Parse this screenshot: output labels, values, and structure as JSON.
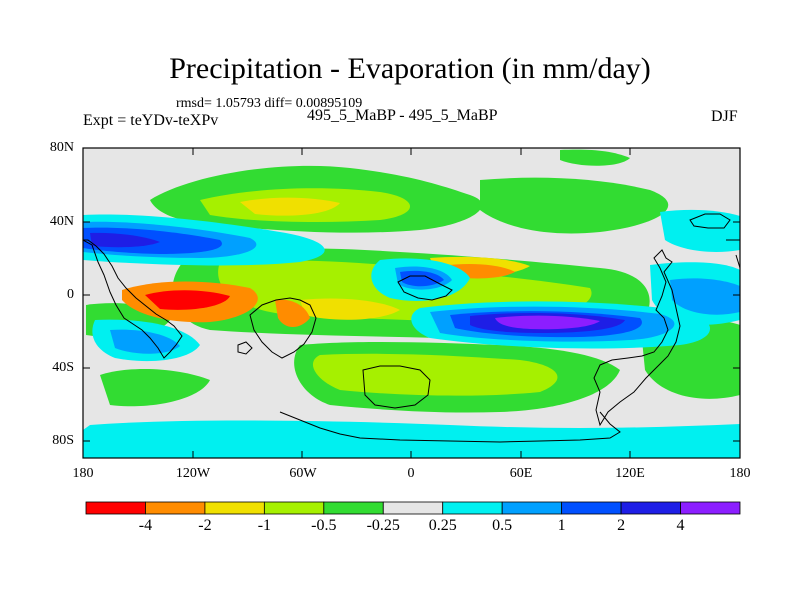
{
  "title": "Precipitation - Evaporation (in mm/day)",
  "stats": "rmsd= 1.05793 diff= 0.00895109",
  "left_label": "Expt = teYDv-teXPv",
  "center_label": "495_5_MaBP - 495_5_MaBP",
  "season": "DJF",
  "lat_ticks": [
    "80N",
    "40N",
    "0",
    "40S",
    "80S"
  ],
  "lon_ticks": [
    "180",
    "120W",
    "60W",
    "0",
    "60E",
    "120E",
    "180"
  ],
  "colorbar": {
    "colors": [
      "#ff0000",
      "#ff8c00",
      "#f0e000",
      "#a6f000",
      "#32dc32",
      "#e6e6e6",
      "#00f0f0",
      "#00a0ff",
      "#0050ff",
      "#1e1ee6",
      "#8c1eff"
    ],
    "labels": [
      "-4",
      "-2",
      "-1",
      "-0.5",
      "-0.25",
      "0.25",
      "0.5",
      "1",
      "2",
      "4"
    ]
  }
}
